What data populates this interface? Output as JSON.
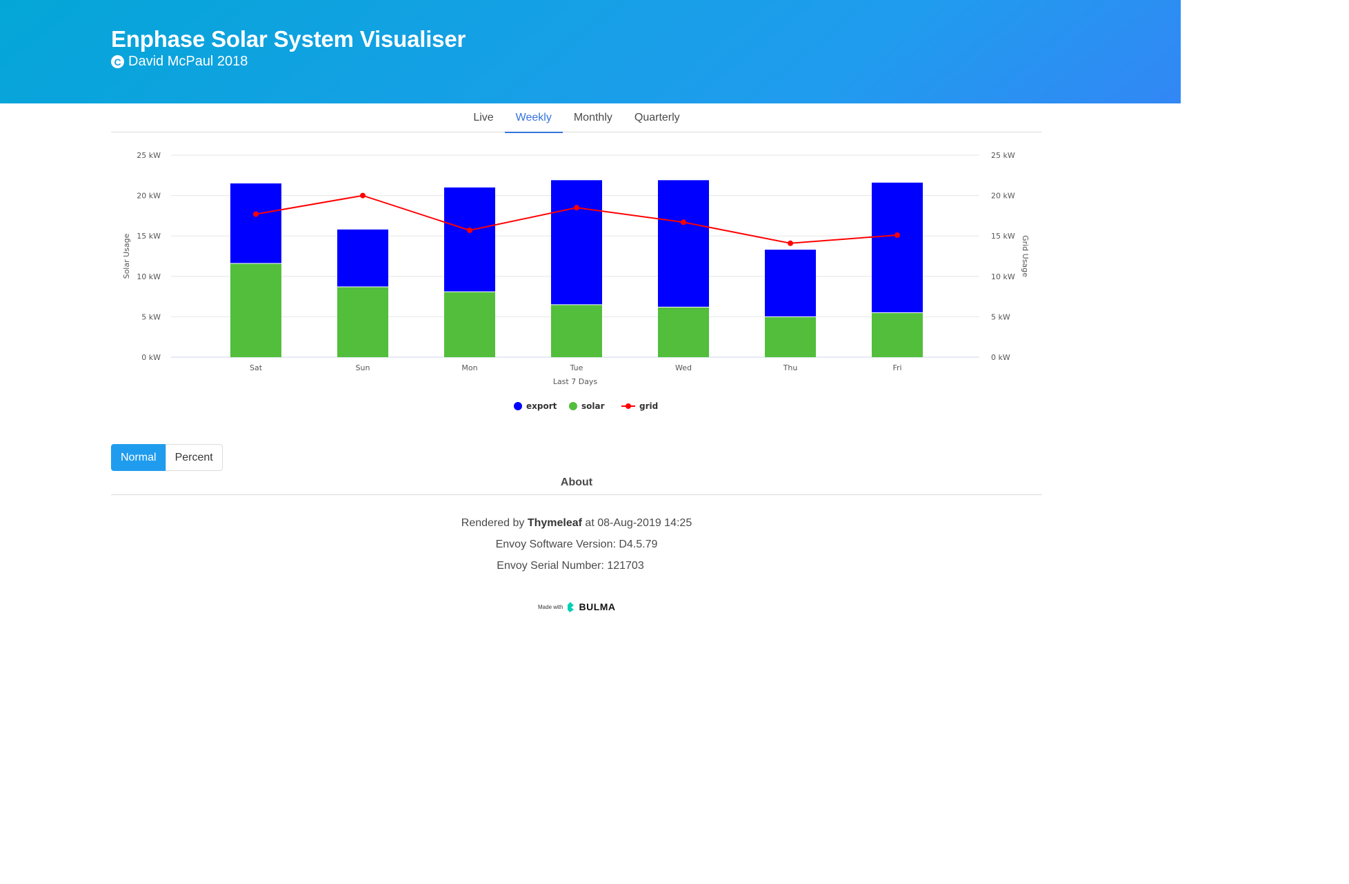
{
  "header": {
    "title": "Enphase Solar System Visualiser",
    "copyright_symbol": "C",
    "author": "David McPaul 2018"
  },
  "tabs": [
    {
      "label": "Live",
      "active": false
    },
    {
      "label": "Weekly",
      "active": true
    },
    {
      "label": "Monthly",
      "active": false
    },
    {
      "label": "Quarterly",
      "active": false
    }
  ],
  "chart_data": {
    "type": "bar",
    "stacked": true,
    "categories": [
      "Sat",
      "Sun",
      "Mon",
      "Tue",
      "Wed",
      "Thu",
      "Fri"
    ],
    "series": [
      {
        "name": "solar",
        "kind": "bar",
        "color": "#52be3c",
        "values": [
          11.6,
          8.7,
          8.1,
          6.5,
          6.2,
          5.0,
          5.5
        ]
      },
      {
        "name": "export",
        "kind": "bar",
        "color": "#0000ff",
        "values": [
          9.9,
          7.1,
          12.9,
          15.4,
          15.7,
          8.3,
          16.1
        ]
      },
      {
        "name": "grid",
        "kind": "line",
        "color": "#ff0000",
        "values": [
          17.7,
          20.0,
          15.7,
          18.5,
          16.7,
          14.1,
          15.1
        ]
      }
    ],
    "legend": [
      {
        "name": "export",
        "color": "#0000ff",
        "marker": "circle"
      },
      {
        "name": "solar",
        "color": "#52be3c",
        "marker": "circle"
      },
      {
        "name": "grid",
        "color": "#ff0000",
        "marker": "line"
      }
    ],
    "title": "",
    "xlabel": "Last 7 Days",
    "ylabel": "Solar Usage",
    "y2label": "Grid Usage",
    "ylim": [
      0,
      25
    ],
    "yticks": [
      "0 kW",
      "5 kW",
      "10 kW",
      "15 kW",
      "20 kW",
      "25 kW"
    ],
    "ytick_values": [
      0,
      5,
      10,
      15,
      20,
      25
    ],
    "grid": true
  },
  "buttons": {
    "normal_label": "Normal",
    "percent_label": "Percent"
  },
  "about": {
    "title": "About",
    "rendered_prefix": "Rendered by ",
    "rendered_engine": "Thymeleaf",
    "rendered_suffix": " at 08-Aug-2019 14:25",
    "software_version": "Envoy Software Version: D4.5.79",
    "serial_number": "Envoy Serial Number: 121703"
  },
  "footer": {
    "made_with": "Made with",
    "brand": "BULMA",
    "brand_color": "#00d1b2"
  }
}
